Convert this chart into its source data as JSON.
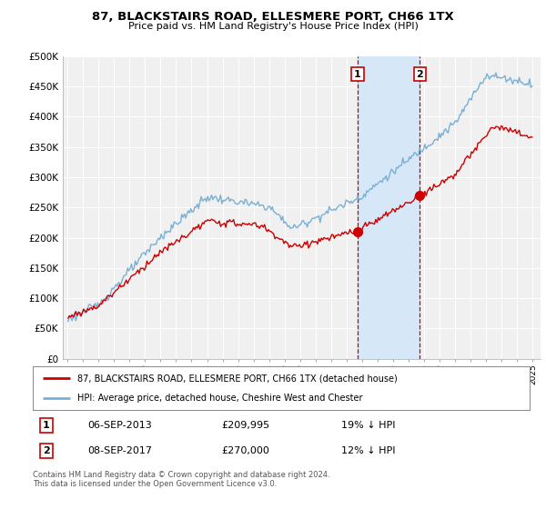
{
  "title": "87, BLACKSTAIRS ROAD, ELLESMERE PORT, CH66 1TX",
  "subtitle": "Price paid vs. HM Land Registry's House Price Index (HPI)",
  "hpi_color": "#7ab0d4",
  "price_color": "#cc0000",
  "sale1_date": "06-SEP-2013",
  "sale1_price": 209995,
  "sale2_date": "08-SEP-2017",
  "sale2_price": 270000,
  "sale1_pct": "19% ↓ HPI",
  "sale2_pct": "12% ↓ HPI",
  "legend_line1": "87, BLACKSTAIRS ROAD, ELLESMERE PORT, CH66 1TX (detached house)",
  "legend_line2": "HPI: Average price, detached house, Cheshire West and Chester",
  "footnote": "Contains HM Land Registry data © Crown copyright and database right 2024.\nThis data is licensed under the Open Government Licence v3.0.",
  "plot_bg": "#f0f0f0",
  "grid_color": "#ffffff",
  "shade_color": "#d6e8f7",
  "vline_color": "#cc0000"
}
